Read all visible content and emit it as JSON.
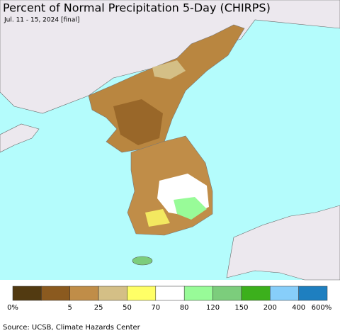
{
  "header": {
    "title": "Percent of Normal Precipitation 5-Day (CHIRPS)",
    "subtitle": "Jul. 11 - 15, 2024 [final]"
  },
  "legend": {
    "colors": [
      "#523a11",
      "#8b5a1f",
      "#c08d48",
      "#d4bf86",
      "#ffff66",
      "#ffffff",
      "#98fb98",
      "#7ccd7c",
      "#3cb01c",
      "#87cefa",
      "#1e7fc0"
    ],
    "labels": [
      "0%",
      "5",
      "25",
      "50",
      "70",
      "80",
      "120",
      "150",
      "200",
      "400",
      "600%"
    ]
  },
  "footer": {
    "source": "Source: UCSB, Climate Hazards Center"
  }
}
